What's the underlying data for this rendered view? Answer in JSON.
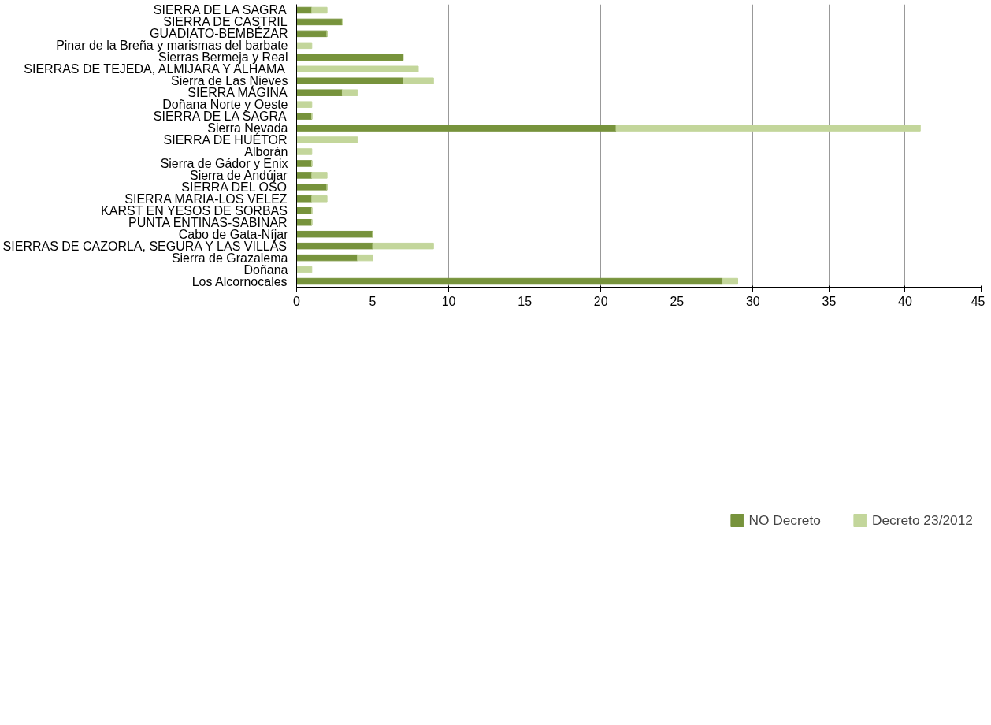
{
  "chart_data": {
    "type": "bar",
    "orientation": "horizontal",
    "stacked": true,
    "categories": [
      "SIERRA DE LA SAGRA",
      "SIERRA DE CASTRIL",
      "GUADIATO-BEMBÉZAR",
      "Pinar de la Breña y marismas del barbate",
      "Sierras Bermeja y Real",
      "SIERRAS DE TEJEDA, ALMIJARA Y ALHAMA",
      "Sierra de Las Nieves",
      "SIERRA MÁGINA",
      "Doñana Norte y Oeste",
      "SIERRA DE LA SAGRA",
      "Sierra Nevada",
      "SIERRA DE HUÉTOR",
      "Alborán",
      "Sierra de Gádor y Enix",
      "Sierra de Andújar",
      "SIERRA DEL OSO",
      "SIERRA MARIA-LOS VELEZ",
      "KARST EN YESOS DE SORBAS",
      "PUNTA ENTINAS-SABINAR",
      "Cabo de Gata-Níjar",
      "SIERRAS DE CAZORLA, SEGURA Y LAS VILLAS",
      "Sierra de Grazalema",
      "Doñana",
      "Los Alcornocales"
    ],
    "series": [
      {
        "name": "NO Decreto",
        "color": "#77933c",
        "values": [
          1,
          3,
          2,
          0,
          7,
          0,
          7,
          3,
          0,
          1,
          21,
          0,
          0,
          1,
          1,
          2,
          1,
          1,
          1,
          5,
          5,
          4,
          0,
          28
        ]
      },
      {
        "name": "Decreto 23/2012",
        "color": "#c3d69b",
        "values": [
          1,
          0,
          0,
          1,
          0,
          8,
          2,
          1,
          1,
          0,
          20,
          4,
          1,
          0,
          1,
          0,
          1,
          0,
          0,
          0,
          4,
          1,
          1,
          1
        ]
      }
    ],
    "xlim": [
      0,
      45
    ],
    "xticks": [
      0,
      5,
      10,
      15,
      20,
      25,
      30,
      35,
      40,
      45
    ],
    "grid": "x",
    "legend": "bottom"
  }
}
